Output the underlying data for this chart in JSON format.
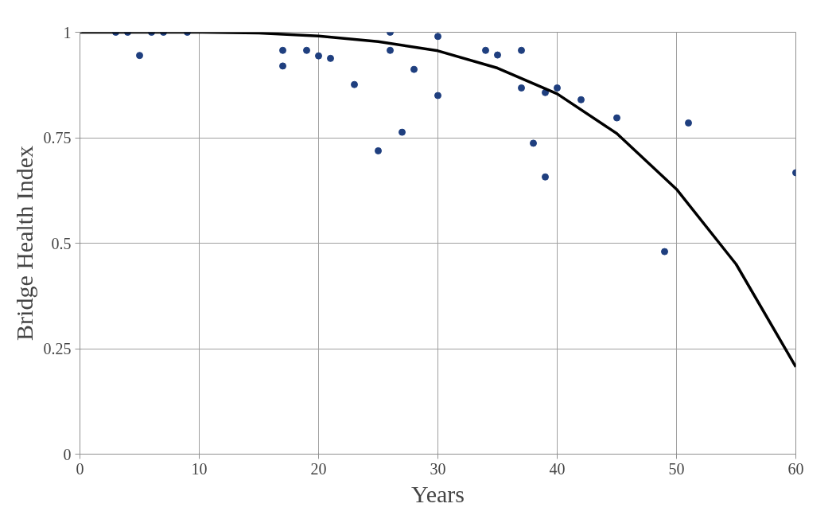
{
  "chart_data": {
    "type": "scatter",
    "xlabel": "Years",
    "ylabel": "Bridge Health Index",
    "xlim": [
      0,
      60
    ],
    "ylim": [
      0,
      1
    ],
    "xticks": [
      0,
      10,
      20,
      30,
      40,
      50,
      60
    ],
    "yticks": [
      0,
      0.25,
      0.5,
      0.75,
      1
    ],
    "grid": true,
    "series": [
      {
        "marker": "circle",
        "color": "#1f3f7f",
        "x": [
          3,
          4,
          5,
          6,
          7,
          9,
          17,
          17,
          19,
          20,
          21,
          23,
          25,
          26,
          26,
          27,
          28,
          30,
          30,
          34,
          35,
          37,
          37,
          38,
          39,
          39,
          40,
          42,
          45,
          49,
          51,
          60
        ],
        "values": [
          1,
          1,
          0.945,
          1,
          1,
          1,
          0.957,
          0.92,
          0.957,
          0.944,
          0.938,
          0.876,
          0.719,
          1,
          0.957,
          0.763,
          0.912,
          0.99,
          0.85,
          0.957,
          0.946,
          0.957,
          0.868,
          0.737,
          0.857,
          0.657,
          0.868,
          0.84,
          0.797,
          0.48,
          0.785,
          0.667
        ]
      },
      {
        "type": "line",
        "marker": "none",
        "color": "#000000",
        "line_style": "solid",
        "x": [
          0,
          5,
          10,
          15,
          20,
          25,
          30,
          35,
          40,
          45,
          50,
          55,
          60
        ],
        "values": [
          1,
          1,
          1,
          0.998,
          0.991,
          0.978,
          0.956,
          0.915,
          0.854,
          0.76,
          0.628,
          0.45,
          0.207
        ]
      }
    ]
  }
}
